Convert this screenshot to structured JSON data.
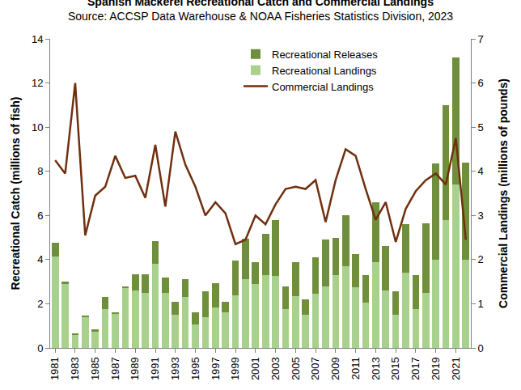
{
  "chart_data": {
    "type": "bar",
    "title": "Spanish Mackerel Recreational Catch and Commercial Landings",
    "subtitle": "Source: ACCSP Data Warehouse & NOAA Fisheries Statistics Division, 2023",
    "y_label": "Recreational Catch (millions of fish)",
    "y2_label": "Commercial Landings (millions of pounds)",
    "stacked": true,
    "grid": false,
    "legend": "top",
    "x": [
      1981,
      1982,
      1983,
      1984,
      1985,
      1986,
      1987,
      1988,
      1989,
      1990,
      1991,
      1992,
      1993,
      1994,
      1995,
      1996,
      1997,
      1998,
      1999,
      2000,
      2001,
      2002,
      2003,
      2004,
      2005,
      2006,
      2007,
      2008,
      2009,
      2010,
      2011,
      2012,
      2013,
      2014,
      2015,
      2016,
      2017,
      2018,
      2019,
      2020,
      2021,
      2022
    ],
    "xlim": [
      1980.5,
      2022.5
    ],
    "xticks": [
      1981,
      1983,
      1985,
      1987,
      1989,
      1991,
      1993,
      1995,
      1997,
      1999,
      2001,
      2003,
      2005,
      2007,
      2009,
      2011,
      2013,
      2015,
      2017,
      2019,
      2021
    ],
    "ylim": [
      0,
      14
    ],
    "yticks": [
      0,
      2,
      4,
      6,
      8,
      10,
      12,
      14
    ],
    "y2lim": [
      0,
      7
    ],
    "y2ticks": [
      0,
      1,
      2,
      3,
      4,
      5,
      6,
      7
    ],
    "series": [
      {
        "name": "Recreational Releases",
        "type": "bar",
        "color": "#6f8f3c",
        "values": [
          0.6,
          0.1,
          0.05,
          0.05,
          0.1,
          0.55,
          0.05,
          0.1,
          0.75,
          0.85,
          1.05,
          0.7,
          0.6,
          0.8,
          0.55,
          1.15,
          1.1,
          0.5,
          1.55,
          1.85,
          1.0,
          1.85,
          2.55,
          1.05,
          1.55,
          0.7,
          1.65,
          2.1,
          1.7,
          2.3,
          1.5,
          1.25,
          2.7,
          2.0,
          1.05,
          2.2,
          1.55,
          3.15,
          4.35,
          5.2,
          5.75,
          4.4
        ]
      },
      {
        "name": "Recreational Landings",
        "type": "bar",
        "color": "#a9d18e",
        "values": [
          4.15,
          2.9,
          0.6,
          1.4,
          0.75,
          1.75,
          1.55,
          2.7,
          2.6,
          2.5,
          3.8,
          2.5,
          1.5,
          2.3,
          1.05,
          1.4,
          1.85,
          1.6,
          2.4,
          3.1,
          2.9,
          3.3,
          3.25,
          1.75,
          2.35,
          1.5,
          2.45,
          2.8,
          3.3,
          3.7,
          2.75,
          2.05,
          3.9,
          2.6,
          1.5,
          3.4,
          1.75,
          2.5,
          4.0,
          5.8,
          7.4,
          4.0
        ]
      },
      {
        "name": "Commercial Landings",
        "type": "line",
        "axis": "y2",
        "color": "#70300f",
        "values": [
          4.25,
          3.95,
          6.0,
          2.55,
          3.45,
          3.65,
          4.35,
          3.85,
          3.9,
          3.4,
          4.6,
          3.2,
          4.9,
          4.15,
          3.65,
          3.0,
          3.3,
          3.05,
          2.35,
          2.45,
          3.0,
          2.8,
          3.25,
          3.6,
          3.65,
          3.6,
          3.8,
          2.85,
          3.8,
          4.5,
          4.35,
          3.6,
          2.9,
          3.3,
          2.4,
          3.15,
          3.55,
          3.8,
          3.95,
          3.7,
          4.75,
          2.45
        ]
      }
    ]
  }
}
